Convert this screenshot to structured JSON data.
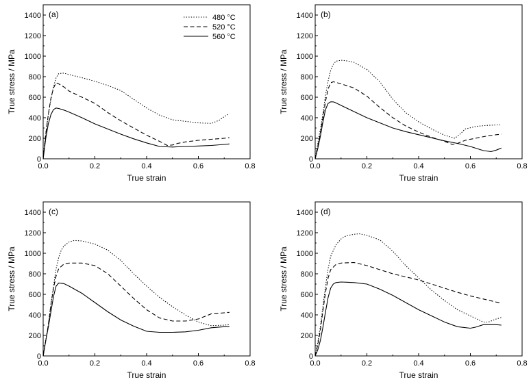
{
  "chart_data": [
    {
      "type": "line",
      "panel_label": "(a)",
      "xlabel": "True strain",
      "ylabel": "True stress / MPa",
      "xlim": [
        0,
        0.8
      ],
      "ylim": [
        0,
        1500
      ],
      "xticks": [
        "0.0",
        "0.2",
        "0.4",
        "0.6",
        "0.8"
      ],
      "yticks": [
        "0",
        "200",
        "400",
        "600",
        "800",
        "1000",
        "1200",
        "1400"
      ],
      "legend_position": "top-right",
      "series": [
        {
          "name": "480 °C",
          "style": "dotted",
          "x": [
            0,
            0.01,
            0.02,
            0.03,
            0.04,
            0.05,
            0.06,
            0.08,
            0.1,
            0.15,
            0.2,
            0.25,
            0.3,
            0.35,
            0.4,
            0.45,
            0.5,
            0.55,
            0.6,
            0.65,
            0.68,
            0.7,
            0.72
          ],
          "y": [
            0,
            250,
            430,
            580,
            700,
            790,
            830,
            835,
            820,
            790,
            755,
            715,
            665,
            580,
            495,
            425,
            380,
            365,
            350,
            345,
            375,
            410,
            440
          ]
        },
        {
          "name": "520 °C",
          "style": "dashed",
          "x": [
            0,
            0.01,
            0.02,
            0.03,
            0.04,
            0.05,
            0.06,
            0.08,
            0.1,
            0.15,
            0.2,
            0.25,
            0.3,
            0.35,
            0.4,
            0.45,
            0.48,
            0.5,
            0.52,
            0.55,
            0.6,
            0.65,
            0.7,
            0.72
          ],
          "y": [
            0,
            240,
            430,
            590,
            690,
            740,
            730,
            700,
            660,
            600,
            540,
            450,
            370,
            300,
            230,
            170,
            130,
            135,
            150,
            165,
            180,
            190,
            200,
            205
          ]
        },
        {
          "name": "560 °C",
          "style": "solid",
          "x": [
            0,
            0.01,
            0.02,
            0.03,
            0.04,
            0.05,
            0.06,
            0.08,
            0.1,
            0.15,
            0.2,
            0.25,
            0.3,
            0.35,
            0.4,
            0.45,
            0.5,
            0.55,
            0.6,
            0.65,
            0.7,
            0.72
          ],
          "y": [
            0,
            200,
            340,
            430,
            480,
            495,
            490,
            475,
            455,
            400,
            340,
            290,
            240,
            195,
            155,
            120,
            115,
            120,
            125,
            130,
            140,
            145
          ]
        }
      ]
    },
    {
      "type": "line",
      "panel_label": "(b)",
      "xlabel": "True strain",
      "ylabel": "True stress / MPa",
      "xlim": [
        0,
        0.8
      ],
      "ylim": [
        0,
        1500
      ],
      "xticks": [
        "0.0",
        "0.2",
        "0.4",
        "0.6",
        "0.8"
      ],
      "yticks": [
        "0",
        "200",
        "400",
        "600",
        "800",
        "1000",
        "1200",
        "1400"
      ],
      "series": [
        {
          "name": "480 °C",
          "style": "dotted",
          "x": [
            0,
            0.01,
            0.02,
            0.03,
            0.04,
            0.05,
            0.06,
            0.07,
            0.08,
            0.1,
            0.12,
            0.15,
            0.2,
            0.25,
            0.3,
            0.35,
            0.4,
            0.45,
            0.5,
            0.54,
            0.56,
            0.58,
            0.62,
            0.66,
            0.7,
            0.72
          ],
          "y": [
            0,
            150,
            290,
            440,
            620,
            760,
            860,
            920,
            950,
            960,
            955,
            940,
            870,
            750,
            580,
            450,
            360,
            290,
            230,
            200,
            240,
            290,
            315,
            325,
            330,
            330
          ]
        },
        {
          "name": "520 °C",
          "style": "dashed",
          "x": [
            0,
            0.01,
            0.02,
            0.03,
            0.04,
            0.05,
            0.06,
            0.07,
            0.08,
            0.1,
            0.15,
            0.2,
            0.25,
            0.3,
            0.35,
            0.4,
            0.45,
            0.5,
            0.53,
            0.55,
            0.58,
            0.62,
            0.66,
            0.7,
            0.72
          ],
          "y": [
            0,
            120,
            250,
            400,
            560,
            680,
            740,
            750,
            745,
            730,
            690,
            610,
            500,
            400,
            320,
            260,
            210,
            170,
            140,
            150,
            180,
            200,
            220,
            235,
            240
          ]
        },
        {
          "name": "560 °C",
          "style": "solid",
          "x": [
            0,
            0.01,
            0.02,
            0.03,
            0.04,
            0.05,
            0.06,
            0.07,
            0.08,
            0.1,
            0.15,
            0.2,
            0.25,
            0.3,
            0.35,
            0.4,
            0.45,
            0.5,
            0.55,
            0.6,
            0.65,
            0.68,
            0.7,
            0.72
          ],
          "y": [
            0,
            100,
            220,
            360,
            480,
            540,
            555,
            555,
            545,
            520,
            460,
            400,
            350,
            300,
            265,
            235,
            205,
            175,
            150,
            120,
            80,
            70,
            85,
            105
          ]
        }
      ]
    },
    {
      "type": "line",
      "panel_label": "(c)",
      "xlabel": "True strain",
      "ylabel": "True stress / MPa",
      "xlim": [
        0,
        0.8
      ],
      "ylim": [
        0,
        1500
      ],
      "xticks": [
        "0.0",
        "0.2",
        "0.4",
        "0.6",
        "0.8"
      ],
      "yticks": [
        "0",
        "200",
        "400",
        "600",
        "800",
        "1000",
        "1200",
        "1400"
      ],
      "series": [
        {
          "name": "480 °C",
          "style": "dotted",
          "x": [
            0,
            0.01,
            0.02,
            0.03,
            0.04,
            0.05,
            0.06,
            0.07,
            0.08,
            0.1,
            0.12,
            0.15,
            0.2,
            0.25,
            0.3,
            0.35,
            0.4,
            0.45,
            0.5,
            0.55,
            0.6,
            0.65,
            0.7,
            0.72
          ],
          "y": [
            0,
            150,
            300,
            500,
            680,
            850,
            960,
            1030,
            1070,
            1110,
            1125,
            1120,
            1090,
            1030,
            930,
            800,
            680,
            570,
            480,
            400,
            330,
            295,
            300,
            305
          ]
        },
        {
          "name": "520 °C",
          "style": "dashed",
          "x": [
            0,
            0.01,
            0.02,
            0.03,
            0.04,
            0.05,
            0.06,
            0.08,
            0.1,
            0.15,
            0.2,
            0.25,
            0.3,
            0.35,
            0.4,
            0.45,
            0.5,
            0.55,
            0.6,
            0.62,
            0.65,
            0.7,
            0.72
          ],
          "y": [
            0,
            150,
            300,
            500,
            660,
            780,
            850,
            895,
            905,
            905,
            880,
            800,
            680,
            560,
            450,
            370,
            340,
            340,
            360,
            380,
            410,
            420,
            425
          ]
        },
        {
          "name": "560 °C",
          "style": "solid",
          "x": [
            0,
            0.01,
            0.02,
            0.03,
            0.04,
            0.05,
            0.06,
            0.08,
            0.1,
            0.15,
            0.2,
            0.25,
            0.3,
            0.35,
            0.4,
            0.45,
            0.5,
            0.55,
            0.6,
            0.65,
            0.7,
            0.72
          ],
          "y": [
            0,
            150,
            280,
            430,
            580,
            680,
            710,
            705,
            680,
            610,
            520,
            430,
            350,
            290,
            240,
            230,
            230,
            235,
            250,
            275,
            285,
            285
          ]
        }
      ]
    },
    {
      "type": "line",
      "panel_label": "(d)",
      "xlabel": "True strain",
      "ylabel": "True stress / MPa",
      "xlim": [
        0,
        0.8
      ],
      "ylim": [
        0,
        1500
      ],
      "xticks": [
        "0.0",
        "0.2",
        "0.4",
        "0.6",
        "0.8"
      ],
      "yticks": [
        "0",
        "200",
        "400",
        "600",
        "800",
        "1000",
        "1200",
        "1400"
      ],
      "series": [
        {
          "name": "480 °C",
          "style": "dotted",
          "x": [
            0,
            0.01,
            0.02,
            0.03,
            0.04,
            0.05,
            0.06,
            0.08,
            0.1,
            0.12,
            0.15,
            0.17,
            0.2,
            0.25,
            0.3,
            0.35,
            0.4,
            0.45,
            0.5,
            0.55,
            0.6,
            0.65,
            0.67,
            0.7,
            0.72
          ],
          "y": [
            0,
            130,
            290,
            480,
            680,
            850,
            970,
            1080,
            1140,
            1170,
            1185,
            1190,
            1175,
            1130,
            1020,
            880,
            760,
            640,
            540,
            450,
            390,
            330,
            330,
            360,
            375
          ]
        },
        {
          "name": "520 °C",
          "style": "dashed",
          "x": [
            0,
            0.01,
            0.02,
            0.03,
            0.04,
            0.05,
            0.06,
            0.08,
            0.1,
            0.15,
            0.2,
            0.25,
            0.3,
            0.35,
            0.4,
            0.45,
            0.5,
            0.55,
            0.6,
            0.65,
            0.7,
            0.72
          ],
          "y": [
            0,
            110,
            250,
            440,
            620,
            760,
            840,
            890,
            905,
            910,
            880,
            840,
            800,
            770,
            740,
            700,
            660,
            620,
            585,
            555,
            525,
            515
          ]
        },
        {
          "name": "560 °C",
          "style": "solid",
          "x": [
            0,
            0.01,
            0.02,
            0.03,
            0.04,
            0.05,
            0.06,
            0.07,
            0.08,
            0.1,
            0.15,
            0.2,
            0.25,
            0.3,
            0.35,
            0.4,
            0.45,
            0.5,
            0.55,
            0.6,
            0.62,
            0.65,
            0.7,
            0.72
          ],
          "y": [
            0,
            60,
            150,
            280,
            430,
            570,
            660,
            700,
            715,
            720,
            715,
            700,
            650,
            590,
            520,
            450,
            390,
            330,
            285,
            270,
            280,
            305,
            305,
            300
          ]
        }
      ]
    }
  ]
}
